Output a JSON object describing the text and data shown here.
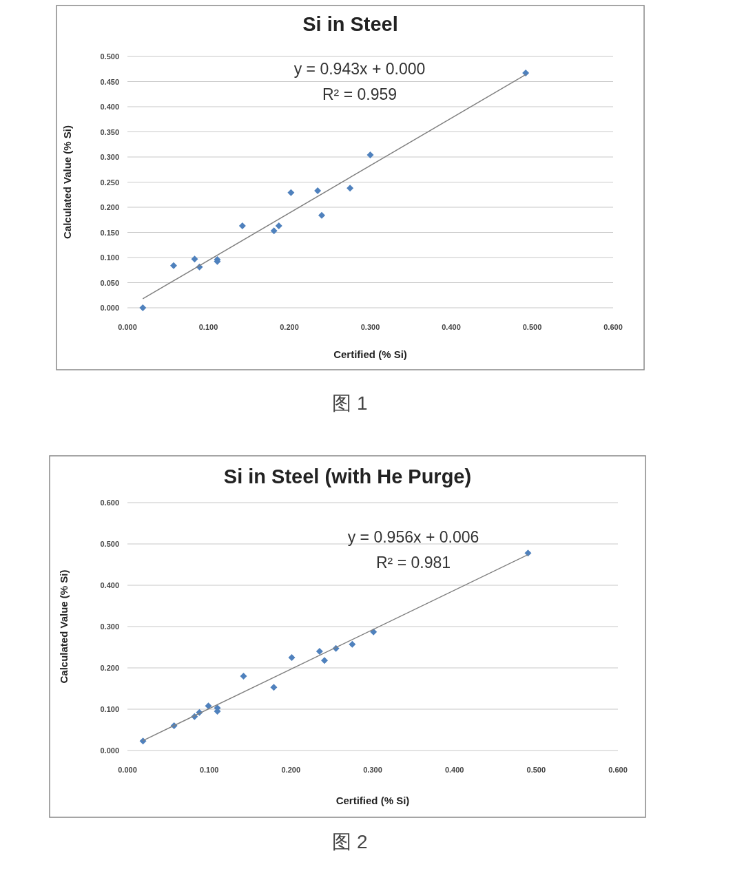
{
  "chart_data": [
    {
      "type": "scatter",
      "title": "Si in Steel",
      "xlabel": "Certified (% Si)",
      "ylabel": "Calculated  Value (% Si)",
      "xlim": [
        0,
        0.6
      ],
      "ylim": [
        0,
        0.5
      ],
      "xticks": [
        {
          "value": 0,
          "label": "0.000"
        },
        {
          "value": 0.1,
          "label": "0.100"
        },
        {
          "value": 0.2,
          "label": "0.200"
        },
        {
          "value": 0.3,
          "label": "0.300"
        },
        {
          "value": 0.4,
          "label": "0.400"
        },
        {
          "value": 0.5,
          "label": "0.500"
        },
        {
          "value": 0.6,
          "label": "0.600"
        }
      ],
      "yticks": [
        {
          "value": 0,
          "label": "0.000"
        },
        {
          "value": 0.05,
          "label": "0.050"
        },
        {
          "value": 0.1,
          "label": "0.100"
        },
        {
          "value": 0.15,
          "label": "0.150"
        },
        {
          "value": 0.2,
          "label": "0.200"
        },
        {
          "value": 0.25,
          "label": "0.250"
        },
        {
          "value": 0.3,
          "label": "0.300"
        },
        {
          "value": 0.35,
          "label": "0.350"
        },
        {
          "value": 0.4,
          "label": "0.400"
        },
        {
          "value": 0.45,
          "label": "0.450"
        },
        {
          "value": 0.5,
          "label": "0.500"
        }
      ],
      "grid": "y",
      "series": [
        {
          "type": "scatter",
          "color": "#4f81bd",
          "marker": "diamond",
          "x": [
            0.019,
            0.057,
            0.083,
            0.089,
            0.111,
            0.111,
            0.142,
            0.181,
            0.187,
            0.202,
            0.235,
            0.24,
            0.275,
            0.3,
            0.492
          ],
          "values": [
            0.0,
            0.084,
            0.097,
            0.081,
            0.092,
            0.096,
            0.163,
            0.153,
            0.163,
            0.229,
            0.233,
            0.184,
            0.238,
            0.304,
            0.467
          ]
        },
        {
          "type": "line",
          "color": "#808080",
          "line_style": "solid",
          "x": [
            0.019,
            0.492
          ],
          "values": [
            0.018,
            0.464
          ]
        }
      ],
      "annotations": [
        "y = 0.943x + 0.000",
        "R² = 0.959",
        "图 1"
      ]
    },
    {
      "type": "scatter",
      "title": "Si in Steel (with He Purge)",
      "xlabel": "Certified (% Si)",
      "ylabel": "Calculated  Value (% Si)",
      "xlim": [
        0,
        0.6
      ],
      "ylim": [
        0,
        0.6
      ],
      "xticks": [
        {
          "value": 0,
          "label": "0.000"
        },
        {
          "value": 0.1,
          "label": "0.100"
        },
        {
          "value": 0.2,
          "label": "0.200"
        },
        {
          "value": 0.3,
          "label": "0.300"
        },
        {
          "value": 0.4,
          "label": "0.400"
        },
        {
          "value": 0.5,
          "label": "0.500"
        },
        {
          "value": 0.6,
          "label": "0.600"
        }
      ],
      "yticks": [
        {
          "value": 0,
          "label": "0.000"
        },
        {
          "value": 0.1,
          "label": "0.100"
        },
        {
          "value": 0.2,
          "label": "0.200"
        },
        {
          "value": 0.3,
          "label": "0.300"
        },
        {
          "value": 0.4,
          "label": "0.400"
        },
        {
          "value": 0.5,
          "label": "0.500"
        },
        {
          "value": 0.6,
          "label": "0.600"
        }
      ],
      "grid": "y",
      "series": [
        {
          "type": "scatter",
          "color": "#4f81bd",
          "marker": "diamond",
          "x": [
            0.019,
            0.057,
            0.082,
            0.088,
            0.099,
            0.11,
            0.11,
            0.142,
            0.179,
            0.201,
            0.235,
            0.241,
            0.255,
            0.275,
            0.301,
            0.49
          ],
          "values": [
            0.023,
            0.06,
            0.082,
            0.092,
            0.108,
            0.103,
            0.095,
            0.18,
            0.153,
            0.225,
            0.24,
            0.218,
            0.247,
            0.257,
            0.287,
            0.478
          ]
        },
        {
          "type": "line",
          "color": "#808080",
          "line_style": "solid",
          "x": [
            0.019,
            0.49
          ],
          "values": [
            0.024,
            0.474
          ]
        }
      ],
      "annotations": [
        "y = 0.956x + 0.006",
        "R² = 0.981",
        "图 2"
      ]
    }
  ]
}
